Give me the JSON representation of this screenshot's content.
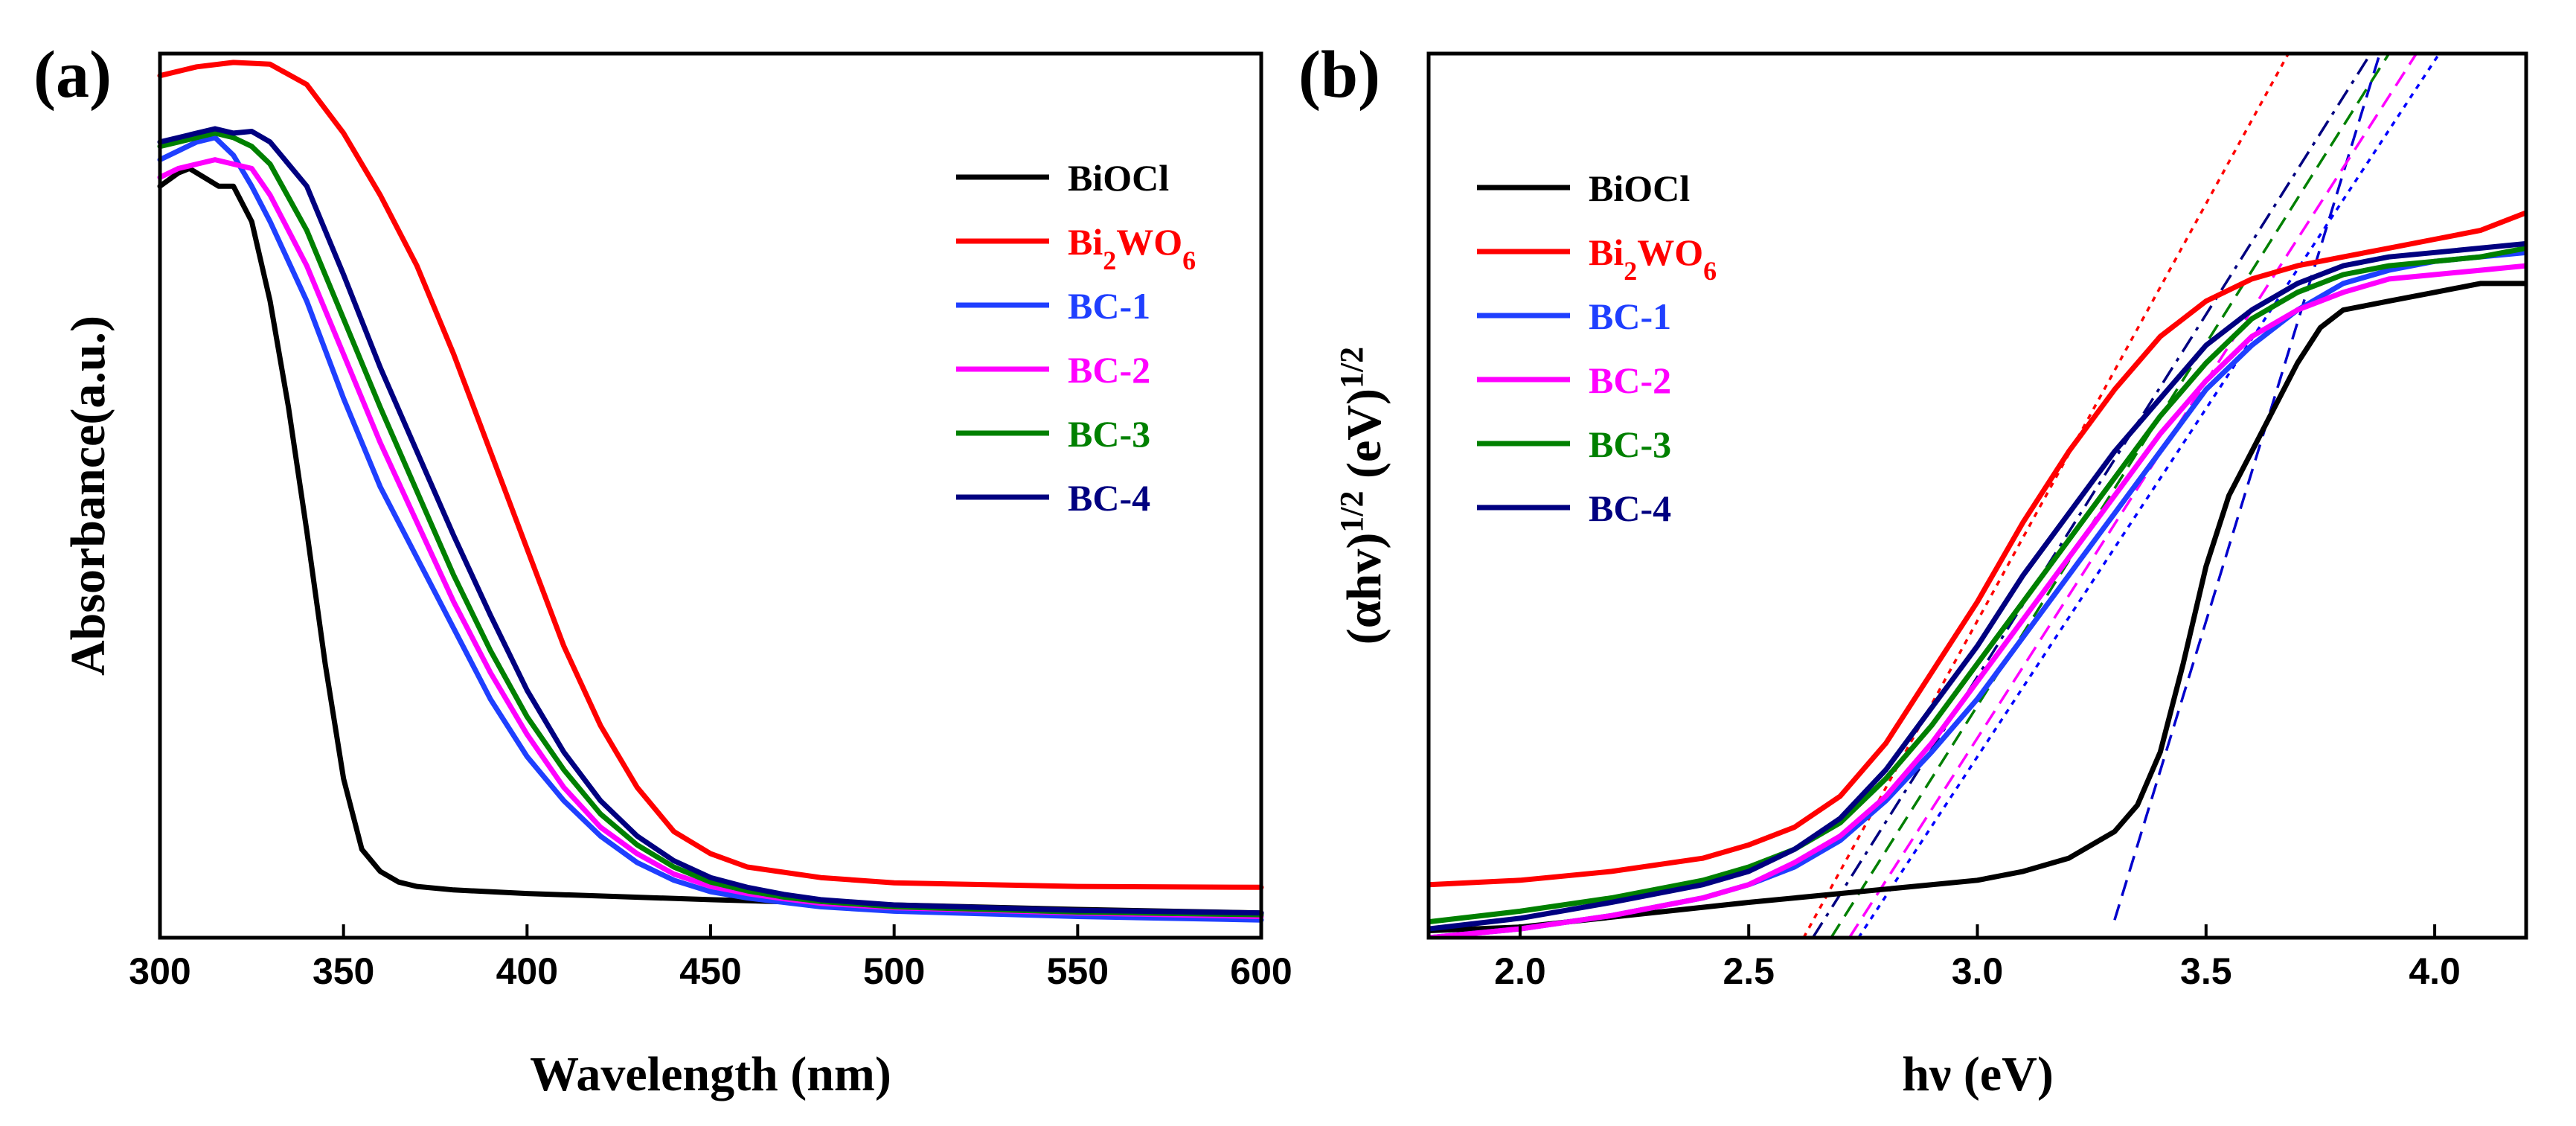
{
  "chart_data": [
    {
      "panel": "(a)",
      "type": "line",
      "xlabel": "Wavelength (nm)",
      "ylabel": "Absorbance(a.u.)",
      "xlim": [
        300,
        600
      ],
      "ylim": [
        0,
        1
      ],
      "x_ticks": [
        "300",
        "350",
        "400",
        "450",
        "500",
        "550",
        "600"
      ],
      "legend_position": "top-right",
      "series": [
        {
          "name": "BiOCl",
          "color": "#000000",
          "x": [
            300,
            305,
            308,
            312,
            316,
            320,
            325,
            330,
            335,
            340,
            345,
            350,
            355,
            360,
            365,
            370,
            380,
            400,
            450,
            500,
            550,
            600
          ],
          "values": [
            0.85,
            0.865,
            0.87,
            0.86,
            0.85,
            0.85,
            0.81,
            0.72,
            0.6,
            0.46,
            0.31,
            0.18,
            0.1,
            0.075,
            0.063,
            0.058,
            0.054,
            0.05,
            0.043,
            0.037,
            0.032,
            0.028
          ]
        },
        {
          "name": "Bi2WO6",
          "color": "#ff0000",
          "x": [
            300,
            310,
            320,
            330,
            340,
            350,
            360,
            370,
            380,
            390,
            400,
            410,
            420,
            430,
            440,
            450,
            460,
            480,
            500,
            550,
            600
          ],
          "values": [
            0.975,
            0.985,
            0.99,
            0.988,
            0.965,
            0.91,
            0.84,
            0.76,
            0.66,
            0.55,
            0.44,
            0.33,
            0.24,
            0.17,
            0.12,
            0.095,
            0.08,
            0.068,
            0.062,
            0.058,
            0.057
          ]
        },
        {
          "name": "BC-1",
          "color": "#1f3fff",
          "x": [
            300,
            305,
            310,
            315,
            320,
            325,
            330,
            340,
            350,
            360,
            370,
            380,
            390,
            400,
            410,
            420,
            430,
            440,
            450,
            460,
            470,
            480,
            500,
            550,
            600
          ],
          "values": [
            0.88,
            0.89,
            0.9,
            0.905,
            0.885,
            0.85,
            0.81,
            0.72,
            0.61,
            0.51,
            0.43,
            0.35,
            0.27,
            0.205,
            0.155,
            0.115,
            0.085,
            0.065,
            0.052,
            0.045,
            0.04,
            0.035,
            0.03,
            0.024,
            0.02
          ]
        },
        {
          "name": "BC-2",
          "color": "#ff00ff",
          "x": [
            300,
            305,
            310,
            315,
            320,
            325,
            330,
            340,
            350,
            360,
            370,
            380,
            390,
            400,
            410,
            420,
            430,
            440,
            450,
            460,
            470,
            480,
            500,
            550,
            600
          ],
          "values": [
            0.86,
            0.87,
            0.875,
            0.88,
            0.875,
            0.87,
            0.84,
            0.76,
            0.66,
            0.56,
            0.47,
            0.38,
            0.3,
            0.23,
            0.17,
            0.125,
            0.095,
            0.072,
            0.058,
            0.05,
            0.044,
            0.039,
            0.034,
            0.028,
            0.024
          ]
        },
        {
          "name": "BC-3",
          "color": "#008000",
          "x": [
            300,
            305,
            310,
            315,
            320,
            325,
            330,
            340,
            350,
            360,
            370,
            380,
            390,
            400,
            410,
            420,
            430,
            440,
            450,
            460,
            470,
            480,
            500,
            550,
            600
          ],
          "values": [
            0.895,
            0.9,
            0.905,
            0.91,
            0.905,
            0.895,
            0.875,
            0.8,
            0.7,
            0.6,
            0.505,
            0.41,
            0.325,
            0.25,
            0.19,
            0.14,
            0.105,
            0.08,
            0.063,
            0.053,
            0.046,
            0.041,
            0.035,
            0.029,
            0.026
          ]
        },
        {
          "name": "BC-4",
          "color": "#000080",
          "x": [
            300,
            305,
            310,
            315,
            320,
            325,
            330,
            340,
            350,
            360,
            370,
            380,
            390,
            400,
            410,
            420,
            430,
            440,
            450,
            460,
            470,
            480,
            500,
            550,
            600
          ],
          "values": [
            0.9,
            0.905,
            0.91,
            0.915,
            0.91,
            0.912,
            0.9,
            0.85,
            0.75,
            0.645,
            0.55,
            0.455,
            0.365,
            0.28,
            0.21,
            0.155,
            0.115,
            0.087,
            0.068,
            0.057,
            0.049,
            0.043,
            0.037,
            0.031,
            0.028
          ]
        }
      ]
    },
    {
      "panel": "(b)",
      "type": "line",
      "xlabel": "hν (eV)",
      "ylabel": "(αhv)1/2 (eV)1/2",
      "xlim": [
        1.8,
        4.2
      ],
      "ylim": [
        0,
        1
      ],
      "x_ticks": [
        "2.0",
        "2.5",
        "3.0",
        "3.5",
        "4.0"
      ],
      "legend_position": "top-left",
      "series": [
        {
          "name": "BiOCl",
          "color": "#000000",
          "x": [
            1.8,
            2.0,
            2.5,
            2.8,
            3.0,
            3.1,
            3.2,
            3.3,
            3.35,
            3.4,
            3.45,
            3.5,
            3.55,
            3.6,
            3.65,
            3.7,
            3.75,
            3.8,
            3.85,
            3.9,
            4.0,
            4.1,
            4.2
          ],
          "values": [
            0.008,
            0.012,
            0.04,
            0.055,
            0.065,
            0.075,
            0.09,
            0.12,
            0.15,
            0.21,
            0.31,
            0.42,
            0.5,
            0.55,
            0.6,
            0.65,
            0.69,
            0.71,
            0.715,
            0.72,
            0.73,
            0.74,
            0.74
          ]
        },
        {
          "name": "Bi2WO6",
          "color": "#ff0000",
          "x": [
            1.8,
            2.0,
            2.2,
            2.4,
            2.5,
            2.6,
            2.7,
            2.8,
            2.9,
            3.0,
            3.1,
            3.2,
            3.3,
            3.4,
            3.5,
            3.6,
            3.7,
            3.8,
            3.9,
            4.0,
            4.1,
            4.2
          ],
          "values": [
            0.06,
            0.065,
            0.075,
            0.09,
            0.105,
            0.125,
            0.16,
            0.22,
            0.3,
            0.38,
            0.47,
            0.55,
            0.62,
            0.68,
            0.72,
            0.745,
            0.76,
            0.77,
            0.78,
            0.79,
            0.8,
            0.82
          ]
        },
        {
          "name": "BC-1",
          "color": "#1f3fff",
          "x": [
            1.8,
            2.0,
            2.2,
            2.4,
            2.5,
            2.6,
            2.7,
            2.8,
            2.9,
            3.0,
            3.1,
            3.2,
            3.3,
            3.4,
            3.5,
            3.6,
            3.7,
            3.8,
            3.9,
            4.0,
            4.1,
            4.2
          ],
          "values": [
            0.0,
            0.01,
            0.025,
            0.045,
            0.06,
            0.08,
            0.11,
            0.155,
            0.21,
            0.27,
            0.34,
            0.41,
            0.48,
            0.55,
            0.62,
            0.67,
            0.71,
            0.74,
            0.755,
            0.765,
            0.77,
            0.775
          ]
        },
        {
          "name": "BC-2",
          "color": "#ff00ff",
          "x": [
            1.8,
            2.0,
            2.2,
            2.4,
            2.5,
            2.6,
            2.7,
            2.8,
            2.9,
            3.0,
            3.1,
            3.2,
            3.3,
            3.4,
            3.5,
            3.6,
            3.7,
            3.8,
            3.9,
            4.0,
            4.1,
            4.2
          ],
          "values": [
            0.0,
            0.01,
            0.025,
            0.045,
            0.06,
            0.085,
            0.115,
            0.16,
            0.22,
            0.29,
            0.36,
            0.43,
            0.5,
            0.57,
            0.63,
            0.68,
            0.71,
            0.73,
            0.745,
            0.75,
            0.755,
            0.76
          ]
        },
        {
          "name": "BC-3",
          "color": "#008000",
          "x": [
            1.8,
            2.0,
            2.2,
            2.4,
            2.5,
            2.6,
            2.7,
            2.8,
            2.9,
            3.0,
            3.1,
            3.2,
            3.3,
            3.4,
            3.5,
            3.6,
            3.7,
            3.8,
            3.9,
            4.0,
            4.1,
            4.2
          ],
          "values": [
            0.018,
            0.03,
            0.045,
            0.065,
            0.08,
            0.1,
            0.13,
            0.18,
            0.24,
            0.31,
            0.38,
            0.45,
            0.52,
            0.59,
            0.65,
            0.7,
            0.73,
            0.75,
            0.76,
            0.765,
            0.77,
            0.78
          ]
        },
        {
          "name": "BC-4",
          "color": "#000080",
          "x": [
            1.8,
            2.0,
            2.2,
            2.4,
            2.5,
            2.6,
            2.7,
            2.8,
            2.9,
            3.0,
            3.1,
            3.2,
            3.3,
            3.4,
            3.5,
            3.6,
            3.7,
            3.8,
            3.9,
            4.0,
            4.1,
            4.2
          ],
          "values": [
            0.01,
            0.022,
            0.04,
            0.06,
            0.075,
            0.1,
            0.135,
            0.19,
            0.26,
            0.33,
            0.41,
            0.48,
            0.55,
            0.61,
            0.67,
            0.71,
            0.74,
            0.76,
            0.77,
            0.775,
            0.78,
            0.785
          ]
        }
      ],
      "tangent_lines": [
        {
          "name": "BiOCl",
          "color": "#0000cc",
          "style": "dashed",
          "x": [
            3.3,
            3.88
          ],
          "values": [
            0.02,
            1.0
          ]
        },
        {
          "name": "Bi2WO6",
          "color": "#ff0000",
          "style": "dotted",
          "x": [
            2.62,
            3.68
          ],
          "values": [
            0.0,
            1.0
          ]
        },
        {
          "name": "BC-1",
          "color": "#0000ff",
          "style": "dotted",
          "x": [
            2.74,
            4.01
          ],
          "values": [
            0.0,
            1.0
          ]
        },
        {
          "name": "BC-2",
          "color": "#ff00ff",
          "style": "dashed",
          "x": [
            2.72,
            3.96
          ],
          "values": [
            0.0,
            1.0
          ]
        },
        {
          "name": "BC-3",
          "color": "#008000",
          "style": "dashed",
          "x": [
            2.68,
            3.9
          ],
          "values": [
            0.0,
            1.0
          ]
        },
        {
          "name": "BC-4",
          "color": "#000080",
          "style": "dashdot",
          "x": [
            2.64,
            3.86
          ],
          "values": [
            0.0,
            1.0
          ]
        }
      ]
    }
  ]
}
